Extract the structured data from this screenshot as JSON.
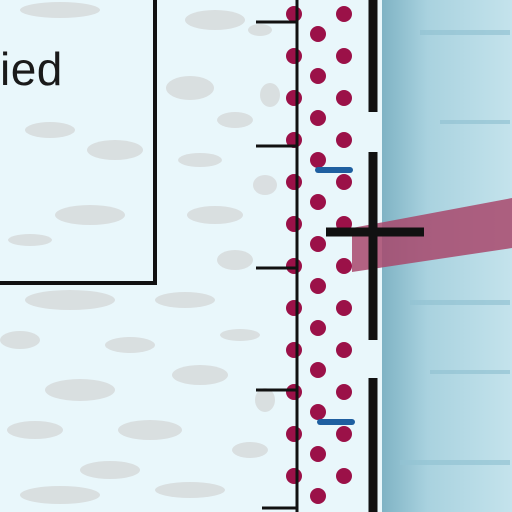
{
  "legend_box": {
    "text": "ied"
  },
  "colors": {
    "background": "#e9f7fb",
    "speckle": "#d7dbdc",
    "line": "#111111",
    "dot": "#9b1148",
    "dash_blue": "#1f5fa0",
    "water_light": "#a9d2df",
    "water_dark": "#6aa0b2",
    "pipe": "#a8486c"
  },
  "icons": [
    "dotted-fill-band",
    "tick-mark",
    "pipe-outlet"
  ]
}
